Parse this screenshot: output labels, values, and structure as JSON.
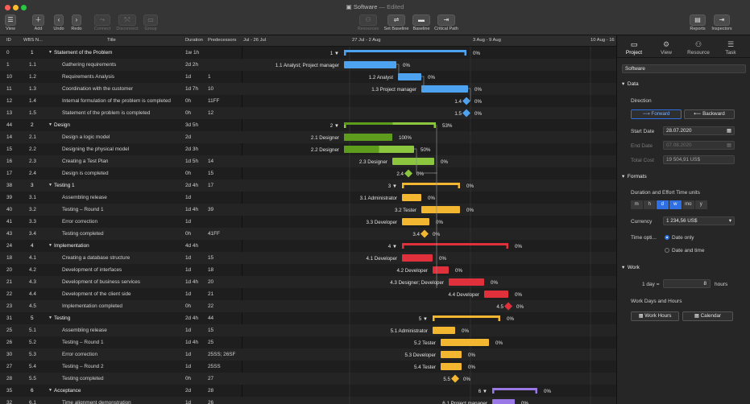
{
  "window": {
    "title": "Software",
    "edited": "— Edited"
  },
  "toolbar": {
    "left": [
      {
        "label": "View",
        "glyph": "☰",
        "dim": false
      },
      {
        "label": "Add",
        "glyph": "＋",
        "dim": false
      },
      {
        "label": "Undo",
        "glyph": "‹",
        "dim": false
      },
      {
        "label": "Redo",
        "glyph": "›",
        "dim": false
      },
      {
        "label": "Connect",
        "glyph": "⤳",
        "dim": true
      },
      {
        "label": "Disconnect",
        "glyph": "⤲",
        "dim": true
      },
      {
        "label": "Group",
        "glyph": "▭",
        "dim": true
      }
    ],
    "center": [
      {
        "label": "Resources",
        "glyph": "⚇",
        "dim": true
      },
      {
        "label": "Set Baseline",
        "glyph": "⇌",
        "dim": false
      },
      {
        "label": "Baseline",
        "glyph": "▬",
        "dim": false
      },
      {
        "label": "Critical Path",
        "glyph": "⇥",
        "dim": false
      }
    ],
    "right": [
      {
        "label": "Reports",
        "glyph": "▤"
      },
      {
        "label": "Inspectors",
        "glyph": "⇥"
      }
    ]
  },
  "columns": {
    "id": "ID",
    "wbs": "WBS N...",
    "title": "Title",
    "duration": "Duration",
    "predecessors": "Predecessors"
  },
  "timeline": {
    "labels": [
      "Jul - 26 Jul",
      "27 Jul - 2 Aug",
      "3 Aug - 9 Aug",
      "10 Aug - 16"
    ]
  },
  "rows": [
    {
      "id": "0",
      "wbs": "1",
      "title": "Statement of the Problem",
      "dur": "1w 1h",
      "pred": "",
      "sum": true,
      "label": "1",
      "pct": "0%",
      "res": ""
    },
    {
      "id": "1",
      "wbs": "1.1",
      "title": "Gathering requirements",
      "dur": "2d 2h",
      "pred": "",
      "sum": false,
      "label": "1.1",
      "pct": "0%",
      "res": "Analyst; Project manager"
    },
    {
      "id": "10",
      "wbs": "1.2",
      "title": "Requirements Analysis",
      "dur": "1d",
      "pred": "1",
      "sum": false,
      "label": "1.2",
      "pct": "0%",
      "res": "Analyst"
    },
    {
      "id": "11",
      "wbs": "1.3",
      "title": "Coordination with the customer",
      "dur": "1d 7h",
      "pred": "10",
      "sum": false,
      "label": "1.3",
      "pct": "0%",
      "res": "Project manager"
    },
    {
      "id": "12",
      "wbs": "1.4",
      "title": "Internal formulation of the problem is completed",
      "dur": "0h",
      "pred": "11FF",
      "sum": false,
      "label": "1.4",
      "pct": "0%",
      "res": ""
    },
    {
      "id": "13",
      "wbs": "1.5",
      "title": "Statement of the problem is completed",
      "dur": "0h",
      "pred": "12",
      "sum": false,
      "label": "1.5",
      "pct": "0%",
      "res": ""
    },
    {
      "id": "44",
      "wbs": "2",
      "title": "Design",
      "dur": "3d 5h",
      "pred": "",
      "sum": true,
      "label": "2",
      "pct": "53%",
      "res": ""
    },
    {
      "id": "14",
      "wbs": "2.1",
      "title": "Design a logic model",
      "dur": "2d",
      "pred": "",
      "sum": false,
      "label": "2.1",
      "pct": "100%",
      "res": "Designer"
    },
    {
      "id": "15",
      "wbs": "2.2",
      "title": "Designing the physical model",
      "dur": "2d 3h",
      "pred": "",
      "sum": false,
      "label": "2.2",
      "pct": "50%",
      "res": "Designer"
    },
    {
      "id": "16",
      "wbs": "2.3",
      "title": "Creating a Test Plan",
      "dur": "1d 5h",
      "pred": "14",
      "sum": false,
      "label": "2.3",
      "pct": "0%",
      "res": "Designer"
    },
    {
      "id": "17",
      "wbs": "2.4",
      "title": "Design is completed",
      "dur": "0h",
      "pred": "15",
      "sum": false,
      "label": "2.4",
      "pct": "0%",
      "res": ""
    },
    {
      "id": "38",
      "wbs": "3",
      "title": "Testing 1",
      "dur": "2d 4h",
      "pred": "17",
      "sum": true,
      "label": "3",
      "pct": "0%",
      "res": ""
    },
    {
      "id": "39",
      "wbs": "3.1",
      "title": "Assembling release",
      "dur": "1d",
      "pred": "",
      "sum": false,
      "label": "3.1",
      "pct": "0%",
      "res": "Administrator"
    },
    {
      "id": "40",
      "wbs": "3.2",
      "title": "Testing – Round 1",
      "dur": "1d 4h",
      "pred": "39",
      "sum": false,
      "label": "3.2",
      "pct": "0%",
      "res": "Tester"
    },
    {
      "id": "41",
      "wbs": "3.3",
      "title": "Error correction",
      "dur": "1d",
      "pred": "",
      "sum": false,
      "label": "3.3",
      "pct": "0%",
      "res": "Developer"
    },
    {
      "id": "43",
      "wbs": "3.4",
      "title": "Testing completed",
      "dur": "0h",
      "pred": "41FF",
      "sum": false,
      "label": "3.4",
      "pct": "0%",
      "res": ""
    },
    {
      "id": "24",
      "wbs": "4",
      "title": "Implementation",
      "dur": "4d 4h",
      "pred": "",
      "sum": true,
      "label": "4",
      "pct": "0%",
      "res": ""
    },
    {
      "id": "18",
      "wbs": "4.1",
      "title": "Creating a database structure",
      "dur": "1d",
      "pred": "15",
      "sum": false,
      "label": "4.1",
      "pct": "0%",
      "res": "Developer"
    },
    {
      "id": "20",
      "wbs": "4.2",
      "title": "Development of interfaces",
      "dur": "1d",
      "pred": "18",
      "sum": false,
      "label": "4.2",
      "pct": "0%",
      "res": "Developer"
    },
    {
      "id": "21",
      "wbs": "4.3",
      "title": "Development of business services",
      "dur": "1d 4h",
      "pred": "20",
      "sum": false,
      "label": "4.3",
      "pct": "0%",
      "res": "Designer; Developer"
    },
    {
      "id": "22",
      "wbs": "4.4",
      "title": "Development of the client side",
      "dur": "1d",
      "pred": "21",
      "sum": false,
      "label": "4.4",
      "pct": "0%",
      "res": "Developer"
    },
    {
      "id": "23",
      "wbs": "4.5",
      "title": "Implementation completed",
      "dur": "0h",
      "pred": "22",
      "sum": false,
      "label": "4.5",
      "pct": "0%",
      "res": ""
    },
    {
      "id": "31",
      "wbs": "5",
      "title": "Testing",
      "dur": "2d 4h",
      "pred": "44",
      "sum": true,
      "label": "5",
      "pct": "0%",
      "res": ""
    },
    {
      "id": "25",
      "wbs": "5.1",
      "title": "Assembling release",
      "dur": "1d",
      "pred": "15",
      "sum": false,
      "label": "5.1",
      "pct": "0%",
      "res": "Administrator"
    },
    {
      "id": "26",
      "wbs": "5.2",
      "title": "Testing – Round 1",
      "dur": "1d 4h",
      "pred": "25",
      "sum": false,
      "label": "5.2",
      "pct": "0%",
      "res": "Tester"
    },
    {
      "id": "30",
      "wbs": "5.3",
      "title": "Error correction",
      "dur": "1d",
      "pred": "25SS; 26SF",
      "sum": false,
      "label": "5.3",
      "pct": "0%",
      "res": "Developer"
    },
    {
      "id": "27",
      "wbs": "5.4",
      "title": "Testing – Round 2",
      "dur": "1d",
      "pred": "25SS",
      "sum": false,
      "label": "5.4",
      "pct": "0%",
      "res": "Tester"
    },
    {
      "id": "28",
      "wbs": "5.5",
      "title": "Testing completed",
      "dur": "0h",
      "pred": "27",
      "sum": false,
      "label": "5.5",
      "pct": "0%",
      "res": ""
    },
    {
      "id": "35",
      "wbs": "6",
      "title": "Acceptance",
      "dur": "2d",
      "pred": "28",
      "sum": true,
      "label": "6",
      "pct": "0%",
      "res": ""
    },
    {
      "id": "32",
      "wbs": "6.1",
      "title": "Time alignment demonstration",
      "dur": "1d",
      "pred": "26",
      "sum": false,
      "label": "6.1",
      "pct": "0%",
      "res": "Project manager"
    }
  ],
  "inspector": {
    "tabs": [
      {
        "label": "Project",
        "glyph": "▭"
      },
      {
        "label": "View",
        "glyph": "⚙"
      },
      {
        "label": "Resource",
        "glyph": "⚇"
      },
      {
        "label": "Task",
        "glyph": "☰"
      }
    ],
    "project_name": "Software",
    "data_section": "Data",
    "direction_label": "Direction",
    "forward": "Forward",
    "backward": "Backward",
    "start_label": "Start Date",
    "start": "28.07.2020",
    "end_label": "End Date",
    "end": "07.08.2020",
    "cost_label": "Total Cost",
    "cost": "19 504,91 US$",
    "formats_section": "Formats",
    "units_label": "Duration and Effort Time units",
    "units": [
      "m",
      "h",
      "d",
      "w",
      "mo",
      "y"
    ],
    "currency_label": "Currency",
    "currency": "1 234,56 US$",
    "timeopt_label": "Time opti...",
    "date_only": "Date only",
    "date_time": "Date and time",
    "work_section": "Work",
    "day_label": "1 day =",
    "day_hours": "8",
    "hours_label": "hours",
    "workdays_label": "Work Days and Hours",
    "work_hours_btn": "Work Hours",
    "calendar_btn": "Calendar"
  },
  "colors": {
    "s1": "#4da3f0",
    "s2": "#8cc63f",
    "s3": "#f2b630",
    "s4": "#e0303c",
    "s5": "#f2b630",
    "s6": "#9a78e6",
    "accent": "#2f6fe4"
  }
}
